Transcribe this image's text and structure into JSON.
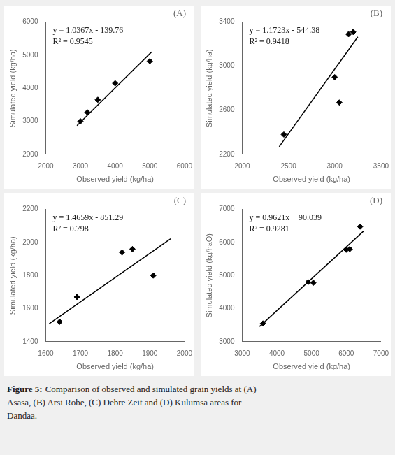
{
  "chart_data": [
    {
      "type": "scatter",
      "title": "(A)",
      "xlabel": "Observed yield (kg/ha)",
      "ylabel": "Simulated yield (kg/ha)",
      "series": [
        {
          "type": "scatter",
          "marker": "diamond",
          "color": "#000000",
          "x": [
            3000,
            3200,
            3500,
            4000,
            5000
          ],
          "values": [
            3000,
            3270,
            3650,
            4150,
            4820
          ]
        },
        {
          "type": "line",
          "line_style": "solid",
          "color": "#000000",
          "x": [
            2900,
            5050
          ],
          "values": [
            2866.67,
            5095.575
          ]
        }
      ],
      "annotations": [
        "y = 1.0367x - 139.76",
        "R² = 0.9545"
      ],
      "xlim": [
        2000,
        6000
      ],
      "ylim": [
        2000,
        6000
      ],
      "xticks": [
        2000,
        3000,
        4000,
        5000,
        6000
      ],
      "yticks": [
        2000,
        3000,
        4000,
        5000,
        6000
      ],
      "grid": false
    },
    {
      "type": "scatter",
      "title": "(B)",
      "xlabel": "Observed yield (kg/ha)",
      "ylabel": "Simulated yield (kg/ha)",
      "series": [
        {
          "type": "scatter",
          "marker": "diamond",
          "color": "#000000",
          "x": [
            2450,
            3000,
            3050,
            3150,
            3200
          ],
          "values": [
            2380,
            2900,
            2670,
            3290,
            3310
          ]
        },
        {
          "type": "line",
          "line_style": "solid",
          "color": "#000000",
          "x": [
            2400,
            3250
          ],
          "values": [
            2269.14,
            3265.595
          ]
        }
      ],
      "annotations": [
        "y = 1.1723x - 544.38",
        "R² = 0.9418"
      ],
      "xlim": [
        2000,
        3500
      ],
      "ylim": [
        2200,
        3400
      ],
      "xticks": [
        2000,
        2500,
        3000,
        3500
      ],
      "yticks": [
        2200,
        2600,
        3000,
        3400
      ],
      "grid": false
    },
    {
      "type": "scatter",
      "title": "(C)",
      "xlabel": "Observed yield (kg/ha)",
      "ylabel": "Simulated yield (kg/ha)",
      "series": [
        {
          "type": "scatter",
          "marker": "diamond",
          "color": "#000000",
          "x": [
            1640,
            1690,
            1820,
            1850,
            1910
          ],
          "values": [
            1520,
            1670,
            1940,
            1960,
            1800
          ]
        },
        {
          "type": "line",
          "line_style": "solid",
          "color": "#000000",
          "x": [
            1610,
            1960
          ],
          "values": [
            1508.809,
            2021.874
          ]
        }
      ],
      "annotations": [
        "y = 1.4659x - 851.29",
        "R² = 0.798"
      ],
      "xlim": [
        1600,
        2000
      ],
      "ylim": [
        1400,
        2200
      ],
      "xticks": [
        1600,
        1700,
        1800,
        1900,
        2000
      ],
      "yticks": [
        1400,
        1600,
        1800,
        2000,
        2200
      ],
      "grid": false
    },
    {
      "type": "scatter",
      "title": "(D)",
      "xlabel": "Observed yield (kg/ha)",
      "ylabel": "Simulated yield (kg/haO)",
      "series": [
        {
          "type": "scatter",
          "marker": "diamond",
          "color": "#000000",
          "x": [
            3600,
            4900,
            5050,
            6000,
            6100,
            6400
          ],
          "values": [
            3550,
            4800,
            4780,
            5780,
            5800,
            6480
          ]
        },
        {
          "type": "line",
          "line_style": "solid",
          "color": "#000000",
          "x": [
            3500,
            6500
          ],
          "values": [
            3457.389,
            6343.689
          ]
        }
      ],
      "annotations": [
        "y = 0.9621x + 90.039",
        "R² = 0.9281"
      ],
      "xlim": [
        3000,
        7000
      ],
      "ylim": [
        3000,
        7000
      ],
      "xticks": [
        3000,
        4000,
        5000,
        6000,
        7000
      ],
      "yticks": [
        3000,
        4000,
        5000,
        6000,
        7000
      ],
      "grid": false
    }
  ],
  "caption_title": "Figure 5:",
  "caption": "Comparison of observed and simulated grain yields at (A)\nAsasa, (B) Arsi Robe, (C) Debre Zeit and (D) Kulumsa areas for\nDandaa."
}
